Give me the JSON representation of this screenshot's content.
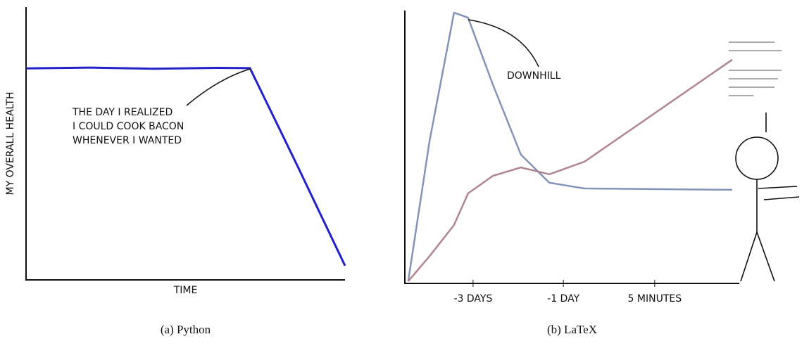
{
  "chart_data": [
    {
      "type": "line",
      "xlabel": "TIME",
      "ylabel": "MY OVERALL HEALTH",
      "annotation": [
        "THE DAY I REALIZED",
        "I COULD COOK BACON",
        "WHENEVER I WANTED"
      ],
      "x": [
        0,
        2,
        4,
        6,
        7.02,
        8.5,
        10
      ],
      "series": [
        {
          "color": "#2222c8",
          "values": [
            7.75,
            7.78,
            7.74,
            7.77,
            7.76,
            4.2,
            0.52
          ]
        }
      ],
      "xlim": [
        0,
        10
      ],
      "ylim": [
        0,
        10
      ],
      "caption": "(a) Python"
    },
    {
      "type": "line",
      "annotation": [
        "DOWNHILL"
      ],
      "xticks": [
        {
          "value": 2.04,
          "label": "-3 DAYS"
        },
        {
          "value": 4.74,
          "label": "-1 DAY"
        },
        {
          "value": 7.47,
          "label": "5 MINUTES"
        }
      ],
      "x": [
        0.1,
        0.74,
        1.47,
        1.89,
        2.63,
        3.47,
        4.32,
        5.37,
        9.79
      ],
      "series": [
        {
          "color": "#8494b8",
          "values": [
            0.08,
            5.23,
            9.92,
            9.74,
            7.29,
            4.72,
            3.69,
            3.48,
            3.43
          ]
        },
        {
          "color": "#b08494",
          "values": [
            0.08,
            1.0,
            2.14,
            3.3,
            3.94,
            4.25,
            4.0,
            4.46,
            8.2
          ]
        }
      ],
      "xlim": [
        0,
        10
      ],
      "ylim": [
        0,
        10
      ],
      "caption": "(b) LaTeX"
    }
  ]
}
